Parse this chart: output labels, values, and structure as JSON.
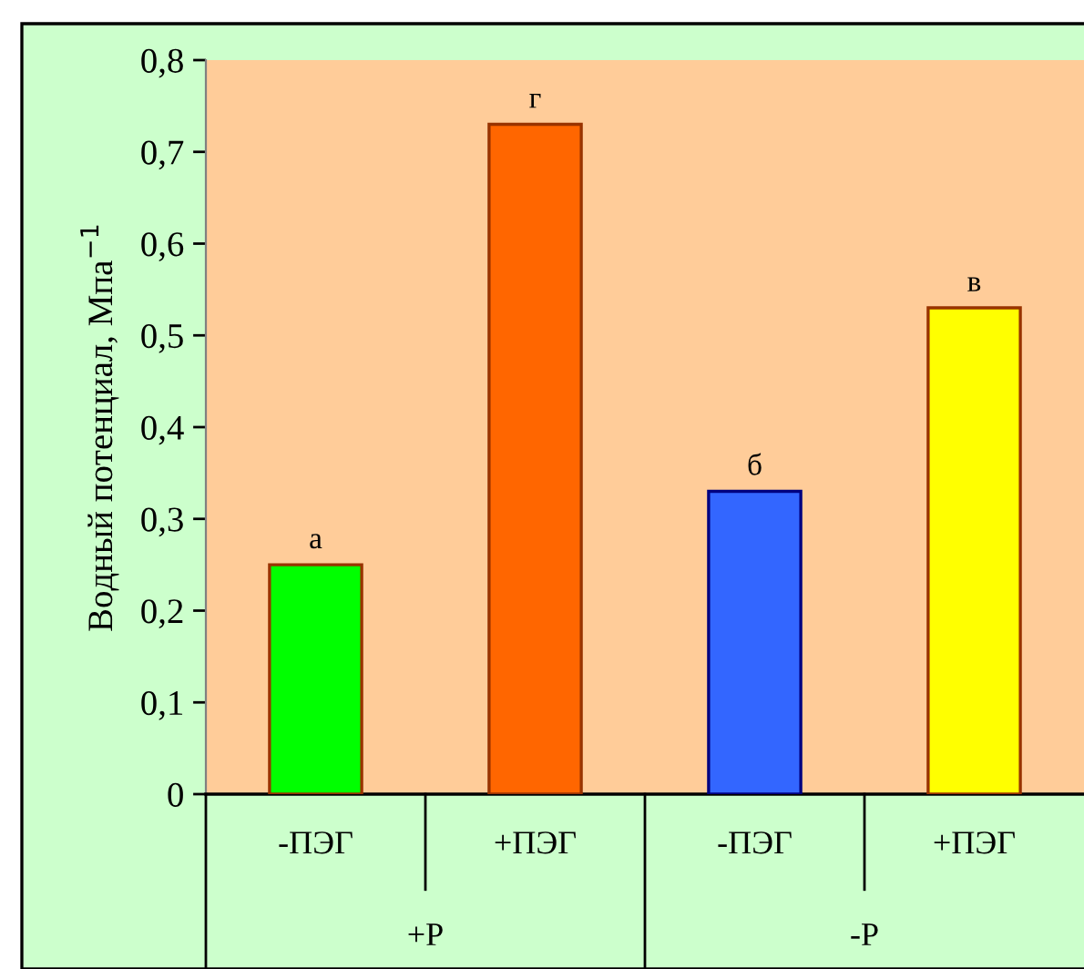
{
  "chart_data": {
    "type": "bar",
    "ylabel": "Водный потенциал, Мпа$^{−1}$",
    "categories": [
      "-ПЭГ",
      "+ПЭГ",
      "-ПЭГ",
      "+ПЭГ"
    ],
    "values": [
      0.25,
      0.73,
      0.33,
      0.53
    ],
    "colors": [
      "#00ff00",
      "#ff6600",
      "#3366ff",
      "#ffff00"
    ],
    "value_labels": [
      "а",
      "г",
      "б",
      "в"
    ],
    "annotations": [
      "+P",
      "-P"
    ],
    "ylim": [
      0,
      0.8
    ],
    "yticks": [
      {
        "value": 0,
        "label": "0"
      },
      {
        "value": 0.1,
        "label": "0,1"
      },
      {
        "value": 0.2,
        "label": "0,2"
      },
      {
        "value": 0.3,
        "label": "0,3"
      },
      {
        "value": 0.4,
        "label": "0,4"
      },
      {
        "value": 0.5,
        "label": "0,5"
      },
      {
        "value": 0.6,
        "label": "0,6"
      },
      {
        "value": 0.7,
        "label": "0,7"
      },
      {
        "value": 0.8,
        "label": "0,8"
      }
    ],
    "grid": false
  }
}
